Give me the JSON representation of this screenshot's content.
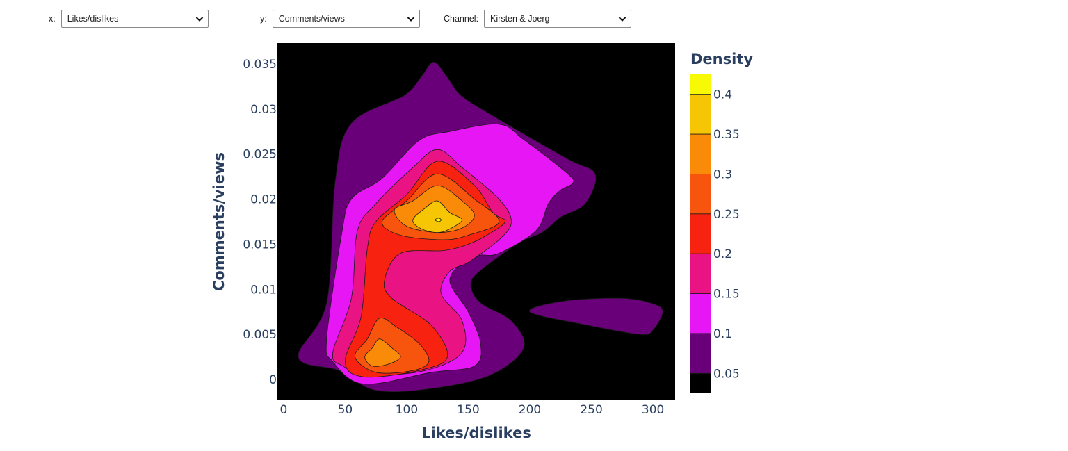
{
  "controls": {
    "x": {
      "label": "x:",
      "value": "Likes/dislikes"
    },
    "y": {
      "label": "y:",
      "value": "Comments/views"
    },
    "channel": {
      "label": "Channel:",
      "value": "Kirsten & Joerg"
    }
  },
  "icons": {
    "dropdown": "chevron-down-icon"
  },
  "chart_data": {
    "type": "contour",
    "subtype": "2d-density",
    "xlabel": "Likes/dislikes",
    "ylabel": "Comments/views",
    "xlim": [
      -5,
      318
    ],
    "ylim": [
      -0.0023,
      0.0373
    ],
    "xticks": [
      0,
      50,
      100,
      150,
      200,
      250,
      300
    ],
    "xtick_labels": [
      "0",
      "50",
      "100",
      "150",
      "200",
      "250",
      "300"
    ],
    "yticks": [
      0,
      0.005,
      0.01,
      0.015,
      0.02,
      0.025,
      0.03,
      0.035
    ],
    "ytick_labels": [
      "0",
      "0.005",
      "0.01",
      "0.015",
      "0.02",
      "0.025",
      "0.03",
      "0.035"
    ],
    "colorbar": {
      "title": "Density",
      "ticks": [
        0.05,
        0.1,
        0.15,
        0.2,
        0.25,
        0.3,
        0.35,
        0.4
      ],
      "tick_labels": [
        "0.05",
        "0.1",
        "0.15",
        "0.2",
        "0.25",
        "0.3",
        "0.35",
        "0.4"
      ],
      "range": [
        0.025,
        0.425
      ],
      "levels": [
        {
          "from": 0.025,
          "to": 0.05,
          "color": "#000000"
        },
        {
          "from": 0.05,
          "to": 0.1,
          "color": "#6a0079"
        },
        {
          "from": 0.1,
          "to": 0.15,
          "color": "#e617f4"
        },
        {
          "from": 0.15,
          "to": 0.2,
          "color": "#ea1383"
        },
        {
          "from": 0.2,
          "to": 0.25,
          "color": "#f7220f"
        },
        {
          "from": 0.25,
          "to": 0.3,
          "color": "#f7550d"
        },
        {
          "from": 0.3,
          "to": 0.35,
          "color": "#f98b09"
        },
        {
          "from": 0.35,
          "to": 0.4,
          "color": "#f6c604"
        },
        {
          "from": 0.4,
          "to": 0.425,
          "color": "#f7f905"
        }
      ]
    },
    "contours": [
      {
        "level": 0.05,
        "color": "#6a0079",
        "points": [
          [
            12,
            0.0025
          ],
          [
            35,
            0.0085
          ],
          [
            42,
            0.022
          ],
          [
            55,
            0.0284
          ],
          [
            98,
            0.0315
          ],
          [
            112,
            0.0336
          ],
          [
            122,
            0.0352
          ],
          [
            133,
            0.0335
          ],
          [
            144,
            0.0315
          ],
          [
            168,
            0.0294
          ],
          [
            230,
            0.0245
          ],
          [
            253,
            0.0228
          ],
          [
            245,
            0.0195
          ],
          [
            225,
            0.018
          ],
          [
            210,
            0.0163
          ],
          [
            192,
            0.0152
          ],
          [
            160,
            0.0121
          ],
          [
            152,
            0.0105
          ],
          [
            160,
            0.0085
          ],
          [
            185,
            0.0065
          ],
          [
            195,
            0.0035
          ],
          [
            168,
            0.0005
          ],
          [
            120,
            -0.001
          ],
          [
            75,
            -0.0012
          ],
          [
            45,
            0.001
          ],
          [
            12,
            0.0025
          ]
        ]
      },
      {
        "level": 0.05,
        "color": "#6a0079",
        "points": [
          [
            200,
            0.0075
          ],
          [
            228,
            0.0087
          ],
          [
            275,
            0.009
          ],
          [
            300,
            0.0084
          ],
          [
            308,
            0.0075
          ],
          [
            300,
            0.0055
          ],
          [
            290,
            0.005
          ],
          [
            248,
            0.006
          ],
          [
            200,
            0.0075
          ]
        ]
      },
      {
        "level": 0.1,
        "color": "#e617f4",
        "points": [
          [
            35,
            0.0045
          ],
          [
            47,
            0.016
          ],
          [
            55,
            0.02
          ],
          [
            80,
            0.0223
          ],
          [
            110,
            0.0265
          ],
          [
            135,
            0.0275
          ],
          [
            175,
            0.0283
          ],
          [
            195,
            0.0266
          ],
          [
            230,
            0.0229
          ],
          [
            235,
            0.0218
          ],
          [
            225,
            0.021
          ],
          [
            215,
            0.0195
          ],
          [
            205,
            0.0165
          ],
          [
            175,
            0.014
          ],
          [
            160,
            0.0138
          ],
          [
            150,
            0.0135
          ],
          [
            135,
            0.011
          ],
          [
            150,
            0.0075
          ],
          [
            160,
            0.004
          ],
          [
            155,
            0.0015
          ],
          [
            120,
            0.0008
          ],
          [
            65,
            -0.0005
          ],
          [
            40,
            0.002
          ],
          [
            35,
            0.0045
          ]
        ]
      },
      {
        "level": 0.15,
        "color": "#ea1383",
        "points": [
          [
            40,
            0.003
          ],
          [
            55,
            0.009
          ],
          [
            60,
            0.0165
          ],
          [
            75,
            0.0195
          ],
          [
            105,
            0.0235
          ],
          [
            125,
            0.0255
          ],
          [
            145,
            0.0235
          ],
          [
            175,
            0.02
          ],
          [
            185,
            0.0175
          ],
          [
            175,
            0.0155
          ],
          [
            150,
            0.013
          ],
          [
            135,
            0.012
          ],
          [
            128,
            0.0095
          ],
          [
            145,
            0.0065
          ],
          [
            145,
            0.003
          ],
          [
            115,
            0.001
          ],
          [
            70,
            0.0005
          ],
          [
            48,
            0.0015
          ],
          [
            40,
            0.003
          ]
        ]
      },
      {
        "level": 0.2,
        "color": "#f7220f",
        "points": [
          [
            50,
            0.002
          ],
          [
            63,
            0.007
          ],
          [
            68,
            0.0145
          ],
          [
            75,
            0.0175
          ],
          [
            100,
            0.0205
          ],
          [
            125,
            0.0242
          ],
          [
            155,
            0.0215
          ],
          [
            170,
            0.0185
          ],
          [
            180,
            0.0175
          ],
          [
            165,
            0.016
          ],
          [
            150,
            0.015
          ],
          [
            130,
            0.0143
          ],
          [
            95,
            0.014
          ],
          [
            82,
            0.011
          ],
          [
            88,
            0.009
          ],
          [
            120,
            0.006
          ],
          [
            133,
            0.0025
          ],
          [
            110,
            0.001
          ],
          [
            65,
            0.0003
          ],
          [
            50,
            0.002
          ]
        ]
      },
      {
        "level": 0.25,
        "color": "#f7550d",
        "points": [
          [
            58,
            0.0025
          ],
          [
            68,
            0.0045
          ],
          [
            78,
            0.0068
          ],
          [
            92,
            0.0058
          ],
          [
            110,
            0.004
          ],
          [
            118,
            0.002
          ],
          [
            105,
            0.001
          ],
          [
            75,
            0.0008
          ],
          [
            58,
            0.0025
          ]
        ]
      },
      {
        "level": 0.25,
        "color": "#f7550d",
        "points": [
          [
            80,
            0.0175
          ],
          [
            100,
            0.0198
          ],
          [
            125,
            0.0228
          ],
          [
            155,
            0.02
          ],
          [
            175,
            0.0175
          ],
          [
            150,
            0.016
          ],
          [
            130,
            0.0155
          ],
          [
            95,
            0.016
          ],
          [
            80,
            0.0175
          ]
        ]
      },
      {
        "level": 0.3,
        "color": "#f98b09",
        "points": [
          [
            66,
            0.0025
          ],
          [
            72,
            0.0035
          ],
          [
            78,
            0.0045
          ],
          [
            88,
            0.0035
          ],
          [
            95,
            0.0025
          ],
          [
            85,
            0.0017
          ],
          [
            72,
            0.0015
          ],
          [
            66,
            0.0025
          ]
        ]
      },
      {
        "level": 0.3,
        "color": "#f98b09",
        "points": [
          [
            90,
            0.0188
          ],
          [
            105,
            0.0198
          ],
          [
            125,
            0.0215
          ],
          [
            145,
            0.0198
          ],
          [
            155,
            0.0182
          ],
          [
            145,
            0.0168
          ],
          [
            125,
            0.0163
          ],
          [
            100,
            0.017
          ],
          [
            90,
            0.0188
          ]
        ]
      },
      {
        "level": 0.35,
        "color": "#f6c604",
        "points": [
          [
            105,
            0.0177
          ],
          [
            115,
            0.019
          ],
          [
            125,
            0.0198
          ],
          [
            135,
            0.0185
          ],
          [
            145,
            0.0177
          ],
          [
            135,
            0.0167
          ],
          [
            125,
            0.0163
          ],
          [
            112,
            0.0167
          ],
          [
            105,
            0.0177
          ]
        ]
      },
      {
        "level": 0.4,
        "color": "#f7f905",
        "points": [
          [
            123,
            0.0177
          ],
          [
            126,
            0.0179
          ],
          [
            128,
            0.0177
          ],
          [
            126,
            0.0175
          ],
          [
            123,
            0.0177
          ]
        ]
      }
    ]
  }
}
